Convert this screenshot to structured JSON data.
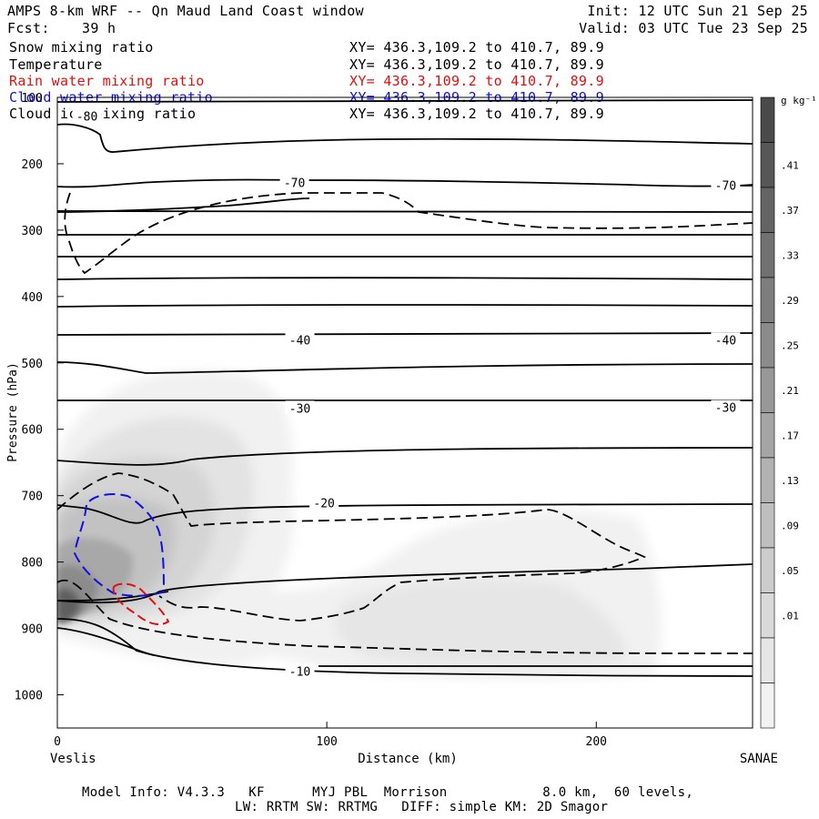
{
  "header": {
    "title": "AMPS 8-km WRF -- Qn Maud Land Coast window",
    "fcst_label": "Fcst:",
    "fcst_value": "39 h",
    "init": "Init: 12 UTC Sun 21 Sep 25",
    "valid": "Valid: 03 UTC Tue 23 Sep 25"
  },
  "legend": [
    {
      "name": "Snow mixing ratio",
      "xy": "XY= 436.3,109.2 to 410.7, 89.9",
      "color": "#000000"
    },
    {
      "name": "Temperature",
      "xy": "XY= 436.3,109.2 to 410.7, 89.9",
      "color": "#000000"
    },
    {
      "name": "Rain water mixing ratio",
      "xy": "XY= 436.3,109.2 to 410.7, 89.9",
      "color": "#e01010"
    },
    {
      "name": "Cloud water mixing ratio",
      "xy": "XY= 436.3,109.2 to 410.7, 89.9",
      "color": "#1010e0"
    },
    {
      "name": "Cloud ice mixing ratio",
      "xy": "XY= 436.3,109.2 to 410.7, 89.9",
      "color": "#000000"
    }
  ],
  "axes": {
    "ylabel": "Pressure (hPa)",
    "xlabel": "Distance (km)",
    "left_station": "Veslis",
    "right_station": "SANAE"
  },
  "colorbar": {
    "unit": "g kg⁻¹",
    "labels": [
      ".41",
      ".37",
      ".33",
      ".29",
      ".25",
      ".21",
      ".17",
      ".13",
      ".09",
      ".05",
      ".01"
    ],
    "shades": [
      "#f2f2f2",
      "#e6e6e6",
      "#d9d9d9",
      "#cccccc",
      "#bfbfbf",
      "#b2b2b2",
      "#a5a5a5",
      "#989898",
      "#8b8b8b",
      "#7e7e7e",
      "#717171",
      "#646464",
      "#575757",
      "#4a4a4a"
    ]
  },
  "footer": {
    "line1": "Model Info: V4.3.3   KF      MYJ PBL  Morrison            8.0 km,  60 levels,",
    "line2": "LW: RRTM SW: RRTMG   DIFF: simple KM: 2D Smagor"
  },
  "chart_data": {
    "type": "contour-cross-section",
    "title": "AMPS 8-km WRF -- Qn Maud Land Coast window",
    "xlabel": "Distance (km)",
    "ylabel": "Pressure (hPa)",
    "xlim": [
      0,
      258
    ],
    "ylim": [
      1050,
      100
    ],
    "x_ticks": [
      0,
      100,
      200
    ],
    "y_ticks": [
      100,
      200,
      300,
      400,
      500,
      600,
      700,
      800,
      900,
      1000
    ],
    "temperature_labels": [
      {
        "text": "-80",
        "x": 11,
        "p": 128
      },
      {
        "text": "-70",
        "x": 88,
        "p": 228
      },
      {
        "text": "-70",
        "x": 248,
        "p": 232
      },
      {
        "text": "-40",
        "x": 90,
        "p": 465
      },
      {
        "text": "-40",
        "x": 248,
        "p": 465
      },
      {
        "text": "-30",
        "x": 90,
        "p": 568
      },
      {
        "text": "-30",
        "x": 248,
        "p": 567
      },
      {
        "text": "-20",
        "x": 99,
        "p": 711
      },
      {
        "text": "-10",
        "x": 90,
        "p": 964
      }
    ],
    "snow_field_max_g_per_kg": 0.41,
    "colorbar_range_g_per_kg": [
      0.01,
      0.41
    ]
  }
}
